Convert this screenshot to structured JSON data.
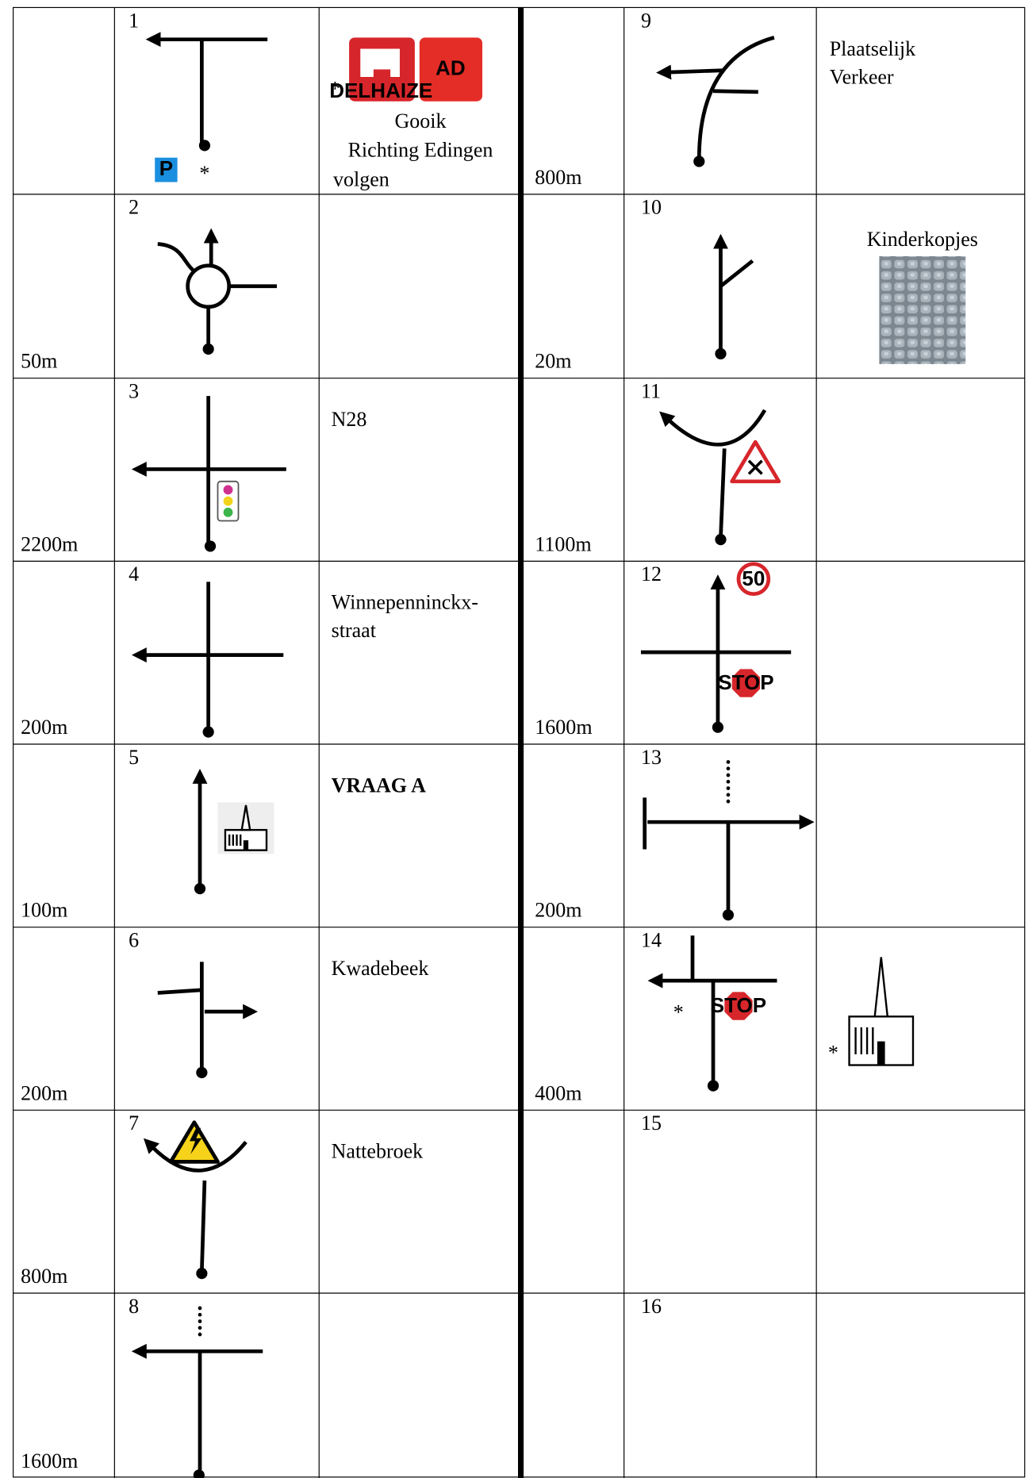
{
  "steps": [
    {
      "number": "1",
      "text": [
        "Gooik",
        "Richting Edingen",
        "volgen"
      ],
      "labels": [
        "P",
        "*",
        "*",
        "DELHAIZE",
        "AD"
      ]
    },
    {
      "number": "2",
      "distance": "50m"
    },
    {
      "number": "3",
      "distance": "2200m",
      "text": [
        "N28"
      ]
    },
    {
      "number": "4",
      "distance": "200m",
      "text": [
        "Winnepenninckx-",
        "straat"
      ]
    },
    {
      "number": "5",
      "distance": "100m",
      "text": [
        "VRAAG A"
      ]
    },
    {
      "number": "6",
      "distance": "200m",
      "text": [
        "Kwadebeek"
      ]
    },
    {
      "number": "7",
      "distance": "800m",
      "text": [
        "Nattebroek"
      ]
    },
    {
      "number": "8",
      "distance": "1600m"
    },
    {
      "number": "9",
      "distance": "800m",
      "text": [
        "Plaatselijk",
        "Verkeer"
      ]
    },
    {
      "number": "10",
      "distance": "20m",
      "text": [
        "Kinderkopjes"
      ]
    },
    {
      "number": "11",
      "distance": "1100m"
    },
    {
      "number": "12",
      "distance": "1600m",
      "labels": [
        "50",
        "STOP"
      ]
    },
    {
      "number": "13",
      "distance": "200m"
    },
    {
      "number": "14",
      "distance": "400m",
      "labels": [
        "*",
        "STOP",
        "*"
      ]
    },
    {
      "number": "15"
    },
    {
      "number": "16"
    }
  ]
}
